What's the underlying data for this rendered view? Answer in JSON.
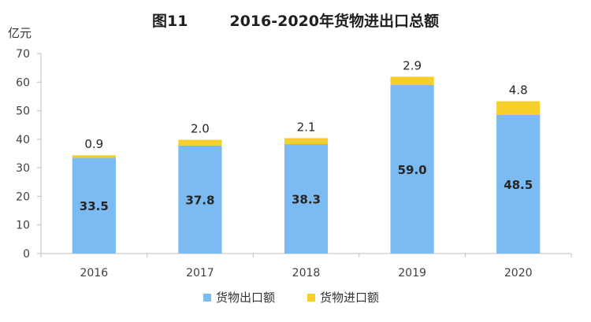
{
  "chart_data": {
    "type": "bar",
    "stacked": true,
    "title": "图11        2016-2020年货物进出口总额",
    "unit_label": "亿元",
    "categories": [
      "2016",
      "2017",
      "2018",
      "2019",
      "2020"
    ],
    "series": [
      {
        "name": "货物出口额",
        "values": [
          33.5,
          37.8,
          38.3,
          59.0,
          48.5
        ],
        "color": "#7cbaf2"
      },
      {
        "name": "货物进口额",
        "values": [
          0.9,
          2.0,
          2.1,
          2.9,
          4.8
        ],
        "color": "#f6cf2a"
      }
    ],
    "ylim": [
      0,
      70
    ],
    "yticks": [
      "0",
      "10",
      "20",
      "30",
      "40",
      "50",
      "60",
      "70"
    ],
    "legend_position": "bottom",
    "grid": false
  }
}
